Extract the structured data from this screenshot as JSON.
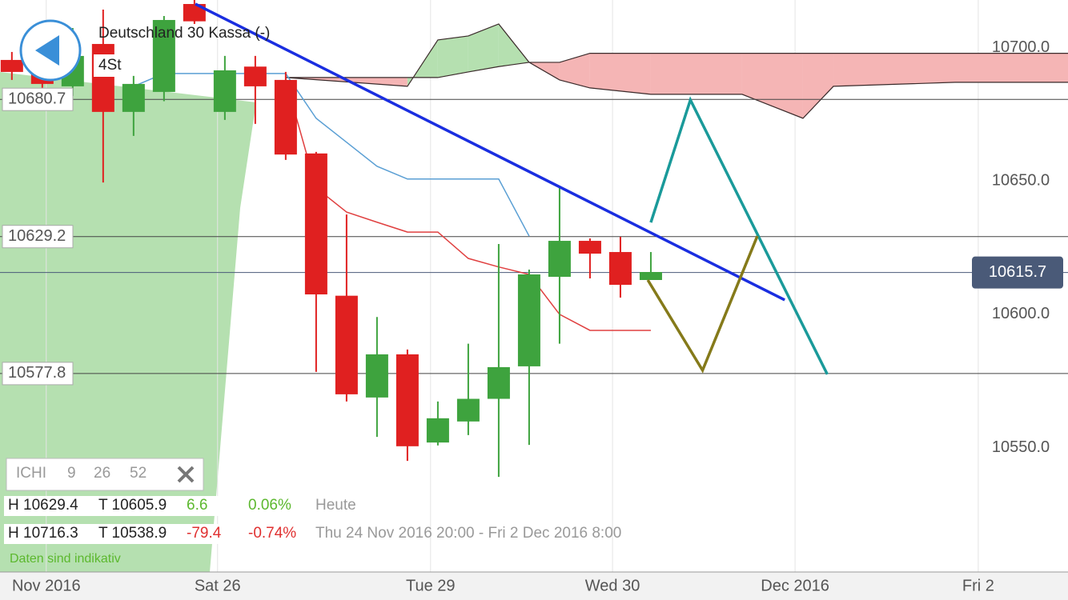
{
  "header": {
    "title": "Deutschland 30 Kassa (-)",
    "interval": "4St"
  },
  "indicator": {
    "name": "ICHI",
    "params": [
      "9",
      "26",
      "52"
    ]
  },
  "stats": [
    {
      "high": "H 10629.4",
      "low": "T 10605.9",
      "change": "6.6",
      "change_pct": "0.06%",
      "period": "Heute"
    },
    {
      "high": "H 10716.3",
      "low": "T 10538.9",
      "change": "-79.4",
      "change_pct": "-0.74%",
      "period": "Thu 24 Nov 2016 20:00 - Fri 2 Dec 2016 8:00"
    }
  ],
  "note": "Daten sind indikativ",
  "chart_data": {
    "type": "candlestick",
    "up_color": "#3ea33e",
    "down_color": "#e02020",
    "x": [
      0,
      1,
      2,
      3,
      4,
      5,
      6,
      7,
      8,
      9,
      10,
      11,
      12,
      13,
      14,
      15,
      16,
      17,
      18,
      19,
      20,
      21
    ],
    "open": [
      10695.5,
      10697,
      10685.6,
      10701.5,
      10676,
      10683.5,
      10716.5,
      10676,
      10693,
      10688,
      10660.4,
      10607,
      10568.8,
      10585,
      10551.9,
      10559.8,
      10568.3,
      10580.5,
      10614.1,
      10627.6,
      10623.4,
      10612.9
    ],
    "high": [
      10698.5,
      10700,
      10707.5,
      10714.4,
      10689.5,
      10712,
      10718,
      10697,
      10697,
      10691,
      10661,
      10637.5,
      10599,
      10586.8,
      10567.3,
      10589,
      10626.4,
      10616.8,
      10648.3,
      10628.5,
      10629.1,
      10623.4
    ],
    "low": [
      10688,
      10685,
      10682,
      10649.5,
      10667,
      10680,
      10709,
      10673,
      10671.5,
      10658,
      10578.4,
      10567.3,
      10554,
      10545,
      10550.8,
      10554.7,
      10539,
      10551,
      10589,
      10613.5,
      10606.3,
      10612.9
    ],
    "close": [
      10691,
      10686.5,
      10697,
      10676,
      10686.5,
      10710.5,
      10710,
      10691.6,
      10685.6,
      10660,
      10607.5,
      10570,
      10585,
      10550.5,
      10561,
      10568.3,
      10580.2,
      10615,
      10627.6,
      10622.8,
      10611.1,
      10615.9
    ],
    "xlim": [
      -0.39,
      34.71
    ],
    "ylim": [
      10503.3,
      10718
    ],
    "xticks": [
      {
        "value": 1.13,
        "label": "Nov 2016"
      },
      {
        "value": 6.76,
        "label": "Sat 26"
      },
      {
        "value": 13.76,
        "label": "Tue 29"
      },
      {
        "value": 19.74,
        "label": "Wed 30"
      },
      {
        "value": 25.74,
        "label": "Dec 2016"
      },
      {
        "value": 31.76,
        "label": "Fri 2"
      }
    ],
    "yticks": [
      {
        "value": 10700,
        "label": "10700.0"
      },
      {
        "value": 10650,
        "label": "10650.0"
      },
      {
        "value": 10600,
        "label": "10600.0"
      },
      {
        "value": 10550,
        "label": "10550.0"
      }
    ],
    "levels": [
      10680.7,
      10629.2,
      10577.8
    ],
    "last_price": 10615.7,
    "cloud": {
      "x": [
        9,
        13,
        14,
        15,
        16,
        17,
        18,
        19,
        21,
        24,
        26,
        27,
        31,
        35
      ],
      "span_a": [
        10688.9,
        10685.6,
        10703,
        10704.5,
        10709,
        10694.6,
        10688,
        10685,
        10682.6,
        10682.6,
        10673.6,
        10685.6,
        10687.1,
        10687.1
      ],
      "span_b": [
        10688.9,
        10688.9,
        10688.9,
        10691,
        10693,
        10694.6,
        10694.6,
        10698,
        10698,
        10698,
        10698,
        10698,
        10698,
        10698
      ],
      "up_color": "#b5e0b0",
      "down_color": "#f5b5b5",
      "line_color": "#3a2a2a"
    },
    "lines": [
      {
        "color": "#5a9fd4",
        "x": [
          4,
          5,
          6,
          7,
          8,
          9,
          10,
          11,
          12,
          13,
          14,
          15,
          16,
          17
        ],
        "values": [
          10685.6,
          10690.4,
          10690.4,
          10690.4,
          10690.4,
          10690.4,
          10673.6,
          10664.6,
          10655.6,
          10650.8,
          10650.8,
          10650.8,
          10650.8,
          10629.4
        ]
      },
      {
        "color": "#e04040",
        "x": [
          9,
          10,
          11,
          12,
          13,
          14,
          15,
          16,
          17,
          18,
          19,
          20,
          21
        ],
        "values": [
          10688,
          10647.5,
          10638.4,
          10634.6,
          10630.9,
          10630.9,
          10621,
          10617.8,
          10615,
          10600,
          10594,
          10594,
          10594
        ]
      }
    ],
    "drawings": [
      {
        "color": "#1a2ee0",
        "x": [
          6.03,
          25.4
        ],
        "values": [
          10716.5,
          10605.4
        ]
      },
      {
        "color": "#1a9a9a",
        "x": [
          21,
          22.3,
          26.8
        ],
        "values": [
          10634.5,
          10680.5,
          10577.5
        ]
      },
      {
        "color": "#857a1a",
        "x": [
          20.9,
          22.7,
          24.5
        ],
        "values": [
          10612.9,
          10579,
          10629.4
        ]
      }
    ]
  }
}
